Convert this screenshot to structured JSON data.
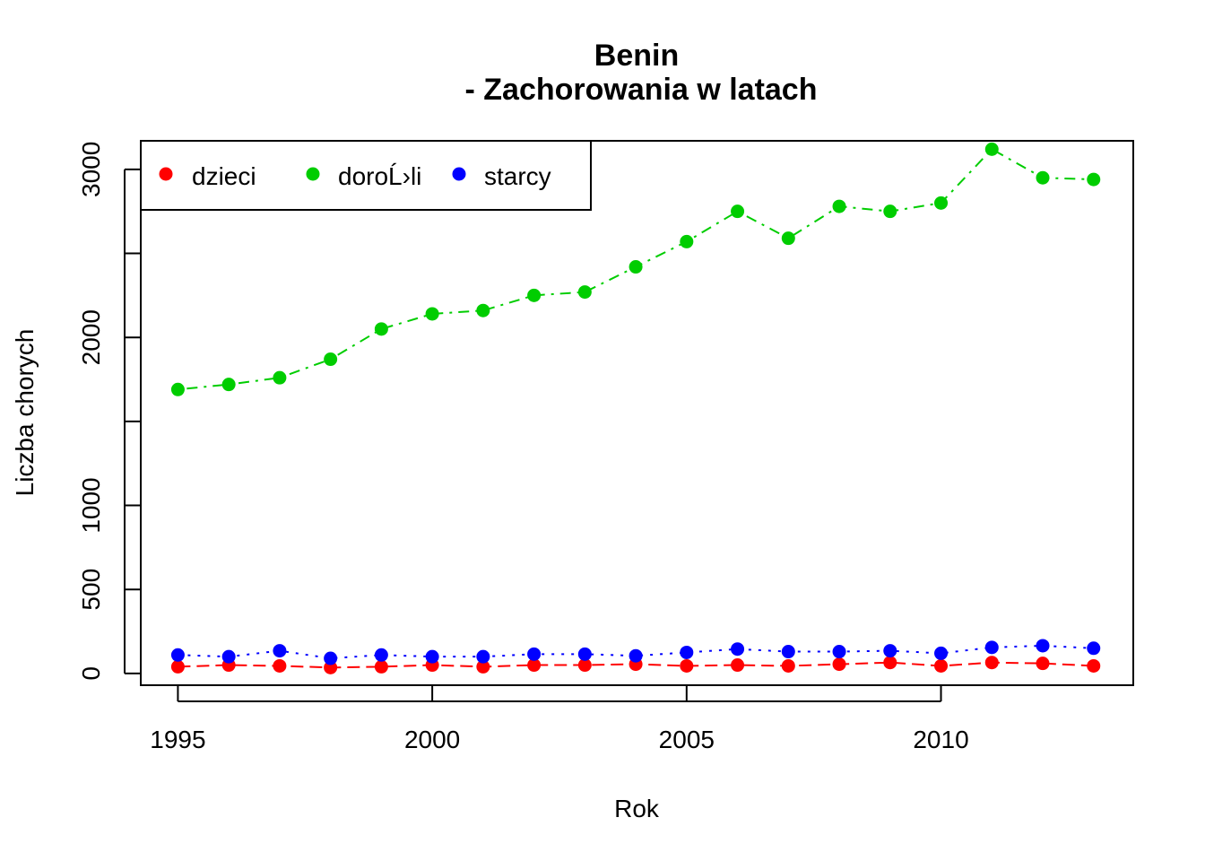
{
  "chart_data": {
    "type": "line",
    "title": "Benin",
    "subtitle": "- Zachorowania w latach",
    "xlabel": "Rok",
    "ylabel": "Liczba chorych",
    "x": [
      1995,
      1996,
      1997,
      1998,
      1999,
      2000,
      2001,
      2002,
      2003,
      2004,
      2005,
      2006,
      2007,
      2008,
      2009,
      2010,
      2011,
      2012,
      2013
    ],
    "xlim": [
      1994.27,
      2013.78
    ],
    "ylim": [
      -70,
      3170
    ],
    "x_ticks": [
      1995,
      2000,
      2005,
      2010
    ],
    "y_ticks": [
      0,
      500,
      1000,
      1500,
      2000,
      2500,
      3000
    ],
    "y_tick_labels": [
      "0",
      "500",
      "1000",
      "",
      "2000",
      "",
      "3000"
    ],
    "grid": false,
    "legend_position": "top-left",
    "series": [
      {
        "name": "dzieci",
        "color": "#ff0000",
        "line_style": "dashed",
        "values": [
          40,
          50,
          45,
          35,
          40,
          50,
          40,
          50,
          50,
          55,
          45,
          50,
          45,
          55,
          65,
          45,
          65,
          60,
          45
        ]
      },
      {
        "name": "doroĹ›li",
        "color": "#00cd00",
        "line_style": "dotdash",
        "values": [
          1690,
          1720,
          1760,
          1870,
          2050,
          2140,
          2160,
          2250,
          2270,
          2420,
          2570,
          2750,
          2590,
          2780,
          2750,
          2800,
          3120,
          2950,
          2940
        ]
      },
      {
        "name": "starcy",
        "color": "#0000ff",
        "line_style": "dotted",
        "values": [
          110,
          100,
          135,
          90,
          110,
          100,
          100,
          115,
          115,
          105,
          125,
          145,
          130,
          130,
          135,
          120,
          155,
          165,
          150
        ]
      }
    ]
  }
}
